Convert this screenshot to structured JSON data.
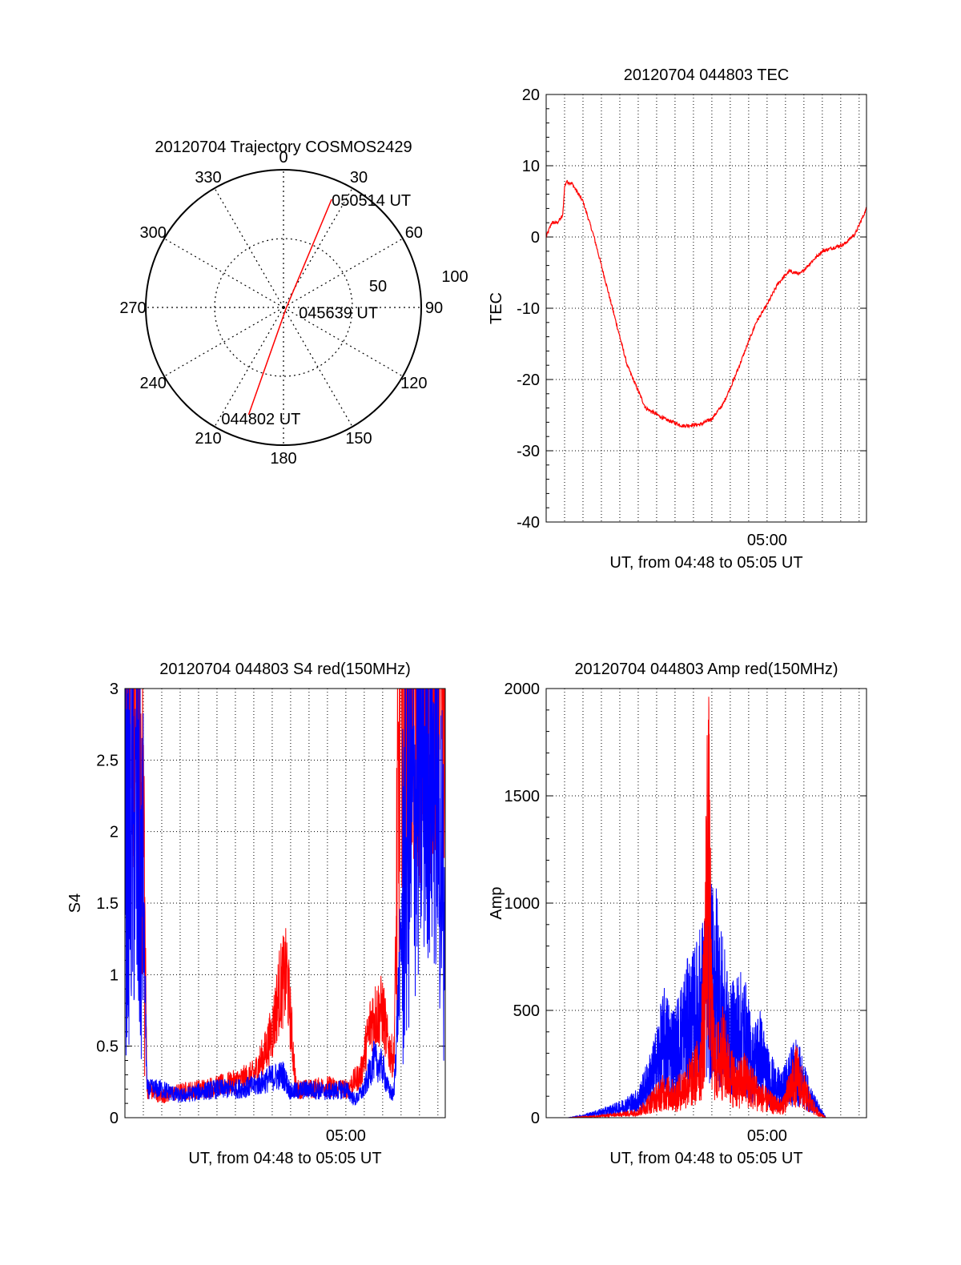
{
  "colors": {
    "red": "#ff0000",
    "blue": "#0000ff",
    "axis": "#000000",
    "grid": "#000000"
  },
  "chart_data": [
    {
      "type": "polar",
      "title": "20120704 Trajectory COSMOS2429",
      "angle_ticks": [
        "0",
        "30",
        "60",
        "90",
        "120",
        "150",
        "180",
        "210",
        "240",
        "270",
        "300",
        "330"
      ],
      "radial_labels": [
        "50",
        "100"
      ],
      "series": [
        {
          "color": "red",
          "points": [
            {
              "azimuth": 198,
              "radius": 82
            },
            {
              "azimuth": 115,
              "radius": 2
            },
            {
              "azimuth": 24,
              "radius": 86
            }
          ]
        }
      ],
      "annotations": [
        {
          "text": "050514 UT",
          "azimuth": 24,
          "radius": 86
        },
        {
          "text": "045639 UT",
          "azimuth": 115,
          "radius": 2
        },
        {
          "text": "044802 UT",
          "azimuth": 198,
          "radius": 82
        }
      ]
    },
    {
      "type": "line",
      "title": "20120704 044803 TEC",
      "xlabel": "UT, from 04:48 to 05:05 UT",
      "ylabel": "TEC",
      "xlim": [
        0,
        17.4
      ],
      "ylim": [
        -40,
        20
      ],
      "x_unit": "minutes after 04:48 UT",
      "yticks": [
        "20",
        "10",
        "0",
        "-10",
        "-20",
        "-30",
        "-40"
      ],
      "xtick_labels": [
        {
          "x": 12,
          "label": "05:00"
        }
      ],
      "grid": true,
      "series": [
        {
          "color": "red",
          "x": [
            0,
            0.3,
            0.6,
            0.9,
            1.0,
            1.1,
            1.4,
            2.0,
            2.6,
            3.4,
            4.4,
            5.4,
            6.4,
            7.4,
            8.4,
            9.0,
            9.6,
            10.2,
            10.8,
            11.4,
            12.0,
            12.6,
            13.2,
            13.8,
            14.4,
            15.0,
            15.6,
            16.2,
            16.8,
            17.4
          ],
          "values": [
            0,
            2,
            2,
            3,
            7,
            7.8,
            7.5,
            5,
            0,
            -8,
            -18,
            -24,
            -25.5,
            -26.5,
            -26.3,
            -25.5,
            -23.5,
            -20,
            -16,
            -12,
            -9.5,
            -6.5,
            -4.8,
            -5.2,
            -3.5,
            -2,
            -1.5,
            -1,
            0.5,
            4
          ]
        }
      ]
    },
    {
      "type": "line",
      "title": "20120704 044803 S4 red(150MHz)",
      "xlabel": "UT, from 04:48 to 05:05 UT",
      "ylabel": "S4",
      "xlim": [
        0,
        17.4
      ],
      "ylim": [
        0,
        3
      ],
      "x_unit": "minutes after 04:48 UT",
      "yticks": [
        "3",
        "2.5",
        "2",
        "1.5",
        "1",
        "0.5",
        "0"
      ],
      "xtick_labels": [
        {
          "x": 12,
          "label": "05:00"
        }
      ],
      "grid": true,
      "series": [
        {
          "color": "red",
          "x": [
            0,
            0.5,
            1.0,
            1.2,
            2.0,
            3.0,
            4.0,
            5.0,
            6.0,
            7.0,
            7.6,
            8.0,
            8.4,
            8.8,
            9.3,
            10.0,
            11.0,
            12.0,
            12.8,
            13.4,
            14.0,
            14.3,
            14.6,
            15.0,
            15.6,
            16.2,
            16.8,
            17.4
          ],
          "values": [
            3,
            3,
            2.2,
            0.2,
            0.15,
            0.18,
            0.2,
            0.22,
            0.25,
            0.3,
            0.45,
            0.6,
            0.9,
            1.0,
            0.2,
            0.2,
            0.22,
            0.2,
            0.3,
            0.7,
            0.75,
            0.5,
            0.4,
            3,
            3,
            3,
            3,
            3
          ]
        },
        {
          "color": "blue",
          "x": [
            0,
            0.5,
            1.0,
            1.2,
            2.0,
            3.0,
            4.0,
            5.0,
            6.0,
            7.0,
            8.0,
            8.6,
            9.0,
            10.0,
            11.0,
            12.0,
            12.5,
            13.0,
            13.5,
            14.0,
            14.3,
            14.6,
            15.2,
            15.8,
            16.4,
            17.0,
            17.4
          ],
          "values": [
            1.8,
            2.0,
            1.5,
            0.2,
            0.2,
            0.15,
            0.18,
            0.2,
            0.2,
            0.22,
            0.28,
            0.3,
            0.18,
            0.2,
            0.18,
            0.2,
            0.12,
            0.2,
            0.4,
            0.35,
            0.2,
            0.15,
            1.8,
            2.2,
            2.5,
            2.3,
            1.2
          ]
        }
      ]
    },
    {
      "type": "line",
      "title": "20120704 044803 Amp red(150MHz)",
      "xlabel": "UT, from 04:48 to 05:05 UT",
      "ylabel": "Amp",
      "xlim": [
        0,
        17.4
      ],
      "ylim": [
        0,
        2000
      ],
      "x_unit": "minutes after 04:48 UT",
      "yticks": [
        "2000",
        "1500",
        "1000",
        "500",
        "0"
      ],
      "xtick_labels": [
        {
          "x": 12,
          "label": "05:00"
        }
      ],
      "grid": true,
      "series": [
        {
          "color": "blue",
          "x": [
            0,
            1.2,
            2.0,
            3.0,
            4.0,
            5.0,
            5.8,
            6.4,
            7.0,
            7.6,
            8.0,
            8.4,
            8.8,
            9.2,
            9.6,
            10.0,
            10.4,
            10.8,
            11.2,
            11.6,
            12.0,
            12.4,
            12.8,
            13.2,
            13.6,
            14.0,
            14.4,
            14.8,
            15.2,
            17.4
          ],
          "values": [
            0,
            0,
            8,
            25,
            45,
            80,
            200,
            350,
            300,
            420,
            450,
            520,
            600,
            650,
            480,
            350,
            400,
            380,
            250,
            300,
            200,
            150,
            120,
            180,
            220,
            150,
            80,
            40,
            0,
            0
          ]
        },
        {
          "color": "red",
          "x": [
            0,
            1.2,
            2.0,
            3.0,
            4.0,
            5.0,
            5.8,
            6.4,
            7.0,
            7.6,
            8.0,
            8.4,
            8.6,
            8.8,
            9.0,
            9.2,
            9.6,
            10.0,
            10.4,
            10.8,
            11.2,
            11.6,
            12.0,
            12.4,
            12.8,
            13.2,
            13.6,
            14.0,
            14.4,
            14.8,
            15.2,
            17.4
          ],
          "values": [
            0,
            0,
            3,
            8,
            15,
            25,
            80,
            120,
            100,
            150,
            180,
            250,
            600,
            1300,
            400,
            250,
            300,
            200,
            150,
            180,
            140,
            100,
            80,
            60,
            50,
            120,
            200,
            120,
            60,
            20,
            0,
            0
          ]
        }
      ]
    }
  ]
}
